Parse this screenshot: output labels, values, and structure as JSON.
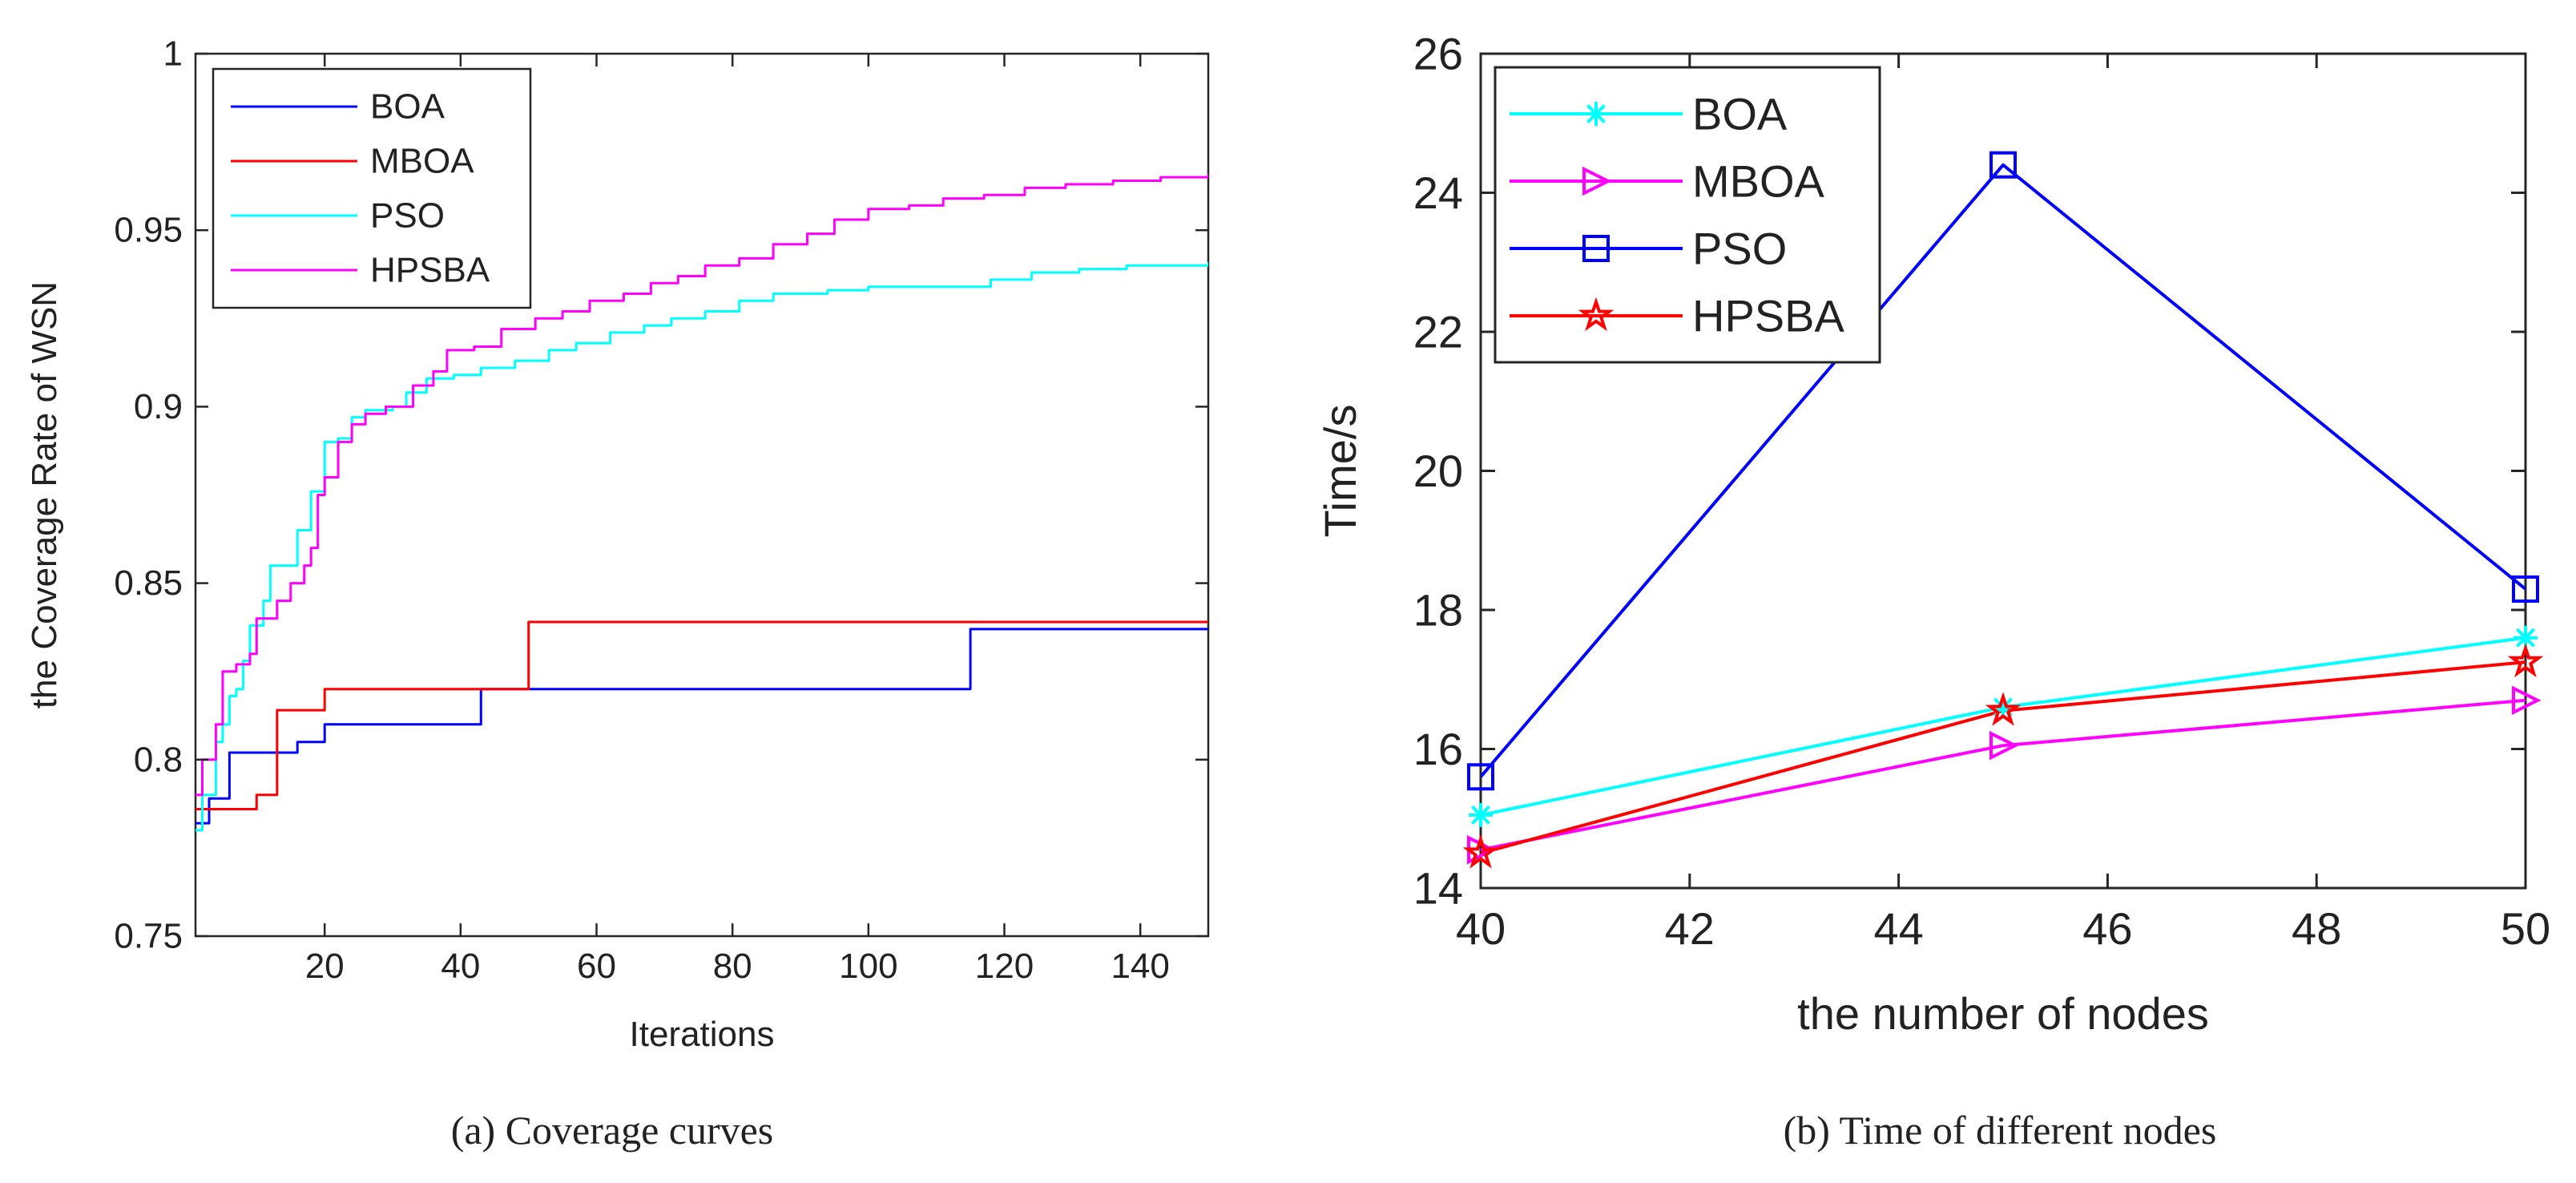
{
  "chart_data": [
    {
      "type": "line",
      "caption": "(a) Coverage curves",
      "xlabel": "Iterations",
      "ylabel": "the Coverage Rate of WSN",
      "xlim": [
        1,
        150
      ],
      "ylim": [
        0.75,
        1
      ],
      "xticks": [
        20,
        40,
        60,
        80,
        100,
        120,
        140
      ],
      "xtick_labels": [
        "20",
        "40",
        "60",
        "80",
        "100",
        "120",
        "140"
      ],
      "yticks": [
        0.75,
        0.8,
        0.85,
        0.9,
        0.95,
        1
      ],
      "ytick_labels": [
        "0.75",
        "0.8",
        "0.85",
        "0.9",
        "0.95",
        "1"
      ],
      "grid": false,
      "legend_position": "top-left",
      "series": [
        {
          "name": "BOA",
          "color": "#0000ff",
          "step": true,
          "points": [
            [
              1,
              0.782
            ],
            [
              3,
              0.789
            ],
            [
              6,
              0.802
            ],
            [
              14,
              0.802
            ],
            [
              16,
              0.805
            ],
            [
              20,
              0.81
            ],
            [
              41,
              0.81
            ],
            [
              43,
              0.82
            ],
            [
              113,
              0.82
            ],
            [
              115,
              0.837
            ],
            [
              150,
              0.837
            ]
          ]
        },
        {
          "name": "MBOA",
          "color": "#ff0000",
          "step": true,
          "points": [
            [
              1,
              0.786
            ],
            [
              9,
              0.786
            ],
            [
              10,
              0.79
            ],
            [
              12,
              0.79
            ],
            [
              13,
              0.814
            ],
            [
              19,
              0.814
            ],
            [
              20,
              0.82
            ],
            [
              49,
              0.82
            ],
            [
              50,
              0.839
            ],
            [
              150,
              0.839
            ]
          ]
        },
        {
          "name": "PSO",
          "color": "#00ffff",
          "step": true,
          "points": [
            [
              1,
              0.78
            ],
            [
              2,
              0.79
            ],
            [
              4,
              0.805
            ],
            [
              5,
              0.81
            ],
            [
              6,
              0.818
            ],
            [
              7,
              0.82
            ],
            [
              8,
              0.828
            ],
            [
              9,
              0.838
            ],
            [
              11,
              0.845
            ],
            [
              12,
              0.855
            ],
            [
              14,
              0.855
            ],
            [
              16,
              0.865
            ],
            [
              18,
              0.876
            ],
            [
              20,
              0.89
            ],
            [
              22,
              0.891
            ],
            [
              24,
              0.897
            ],
            [
              26,
              0.899
            ],
            [
              30,
              0.9
            ],
            [
              32,
              0.904
            ],
            [
              35,
              0.908
            ],
            [
              39,
              0.909
            ],
            [
              43,
              0.911
            ],
            [
              48,
              0.913
            ],
            [
              53,
              0.916
            ],
            [
              57,
              0.918
            ],
            [
              62,
              0.921
            ],
            [
              67,
              0.923
            ],
            [
              71,
              0.925
            ],
            [
              76,
              0.927
            ],
            [
              81,
              0.93
            ],
            [
              86,
              0.932
            ],
            [
              94,
              0.933
            ],
            [
              100,
              0.934
            ],
            [
              114,
              0.934
            ],
            [
              118,
              0.936
            ],
            [
              124,
              0.938
            ],
            [
              131,
              0.939
            ],
            [
              138,
              0.94
            ],
            [
              150,
              0.941
            ]
          ]
        },
        {
          "name": "HPSBA",
          "color": "#ff00ff",
          "step": true,
          "points": [
            [
              1,
              0.79
            ],
            [
              2,
              0.8
            ],
            [
              4,
              0.81
            ],
            [
              5,
              0.825
            ],
            [
              7,
              0.827
            ],
            [
              9,
              0.83
            ],
            [
              10,
              0.84
            ],
            [
              13,
              0.845
            ],
            [
              15,
              0.85
            ],
            [
              17,
              0.855
            ],
            [
              18,
              0.86
            ],
            [
              19,
              0.875
            ],
            [
              20,
              0.88
            ],
            [
              22,
              0.89
            ],
            [
              24,
              0.895
            ],
            [
              26,
              0.898
            ],
            [
              29,
              0.9
            ],
            [
              33,
              0.906
            ],
            [
              36,
              0.91
            ],
            [
              38,
              0.916
            ],
            [
              42,
              0.917
            ],
            [
              46,
              0.922
            ],
            [
              51,
              0.925
            ],
            [
              55,
              0.927
            ],
            [
              59,
              0.93
            ],
            [
              64,
              0.932
            ],
            [
              68,
              0.935
            ],
            [
              72,
              0.937
            ],
            [
              76,
              0.94
            ],
            [
              81,
              0.942
            ],
            [
              86,
              0.946
            ],
            [
              91,
              0.949
            ],
            [
              95,
              0.953
            ],
            [
              100,
              0.956
            ],
            [
              106,
              0.957
            ],
            [
              111,
              0.959
            ],
            [
              117,
              0.96
            ],
            [
              123,
              0.962
            ],
            [
              129,
              0.963
            ],
            [
              136,
              0.964
            ],
            [
              143,
              0.965
            ],
            [
              150,
              0.966
            ]
          ]
        }
      ]
    },
    {
      "type": "line",
      "caption": "(b) Time of different nodes",
      "xlabel": "the number of nodes",
      "ylabel": "Time/s",
      "xlim": [
        40,
        50
      ],
      "ylim": [
        14,
        26
      ],
      "xticks": [
        40,
        42,
        44,
        46,
        48,
        50
      ],
      "xtick_labels": [
        "40",
        "42",
        "44",
        "46",
        "48",
        "50"
      ],
      "yticks": [
        14,
        16,
        18,
        20,
        22,
        24,
        26
      ],
      "ytick_labels": [
        "14",
        "16",
        "18",
        "20",
        "22",
        "24",
        "26"
      ],
      "grid": false,
      "legend_position": "top-left",
      "x": [
        40,
        45,
        50
      ],
      "series": [
        {
          "name": "BOA",
          "color": "#00ffff",
          "marker": "asterisk",
          "values": [
            15.05,
            16.6,
            17.6
          ]
        },
        {
          "name": "MBOA",
          "color": "#ff00ff",
          "marker": "triangle-right",
          "values": [
            14.55,
            16.05,
            16.7
          ]
        },
        {
          "name": "PSO",
          "color": "#0000ff",
          "marker": "square",
          "values": [
            15.6,
            24.4,
            18.3
          ]
        },
        {
          "name": "HPSBA",
          "color": "#ff0000",
          "marker": "pentagram",
          "values": [
            14.5,
            16.55,
            17.25
          ]
        }
      ]
    }
  ]
}
